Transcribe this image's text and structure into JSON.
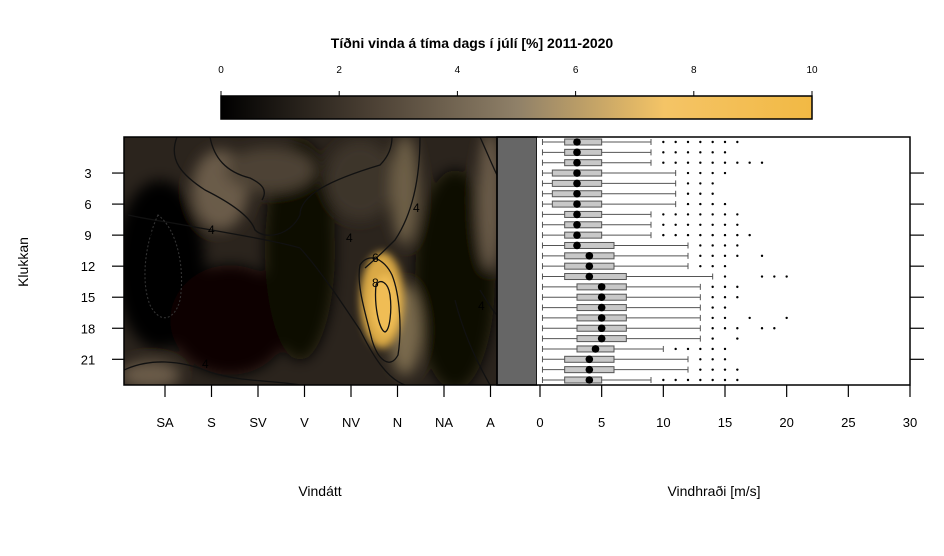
{
  "chart_data": {
    "type": "heatmap",
    "title": "Tíðni vinda á tíma dags í júlí [%] 2011-2020",
    "colorbar": {
      "ticks": [
        "0",
        "2",
        "4",
        "6",
        "8",
        "10"
      ],
      "range": [
        0,
        10
      ],
      "colors": [
        "#000000",
        "#4a3f33",
        "#8f8068",
        "#f4c466",
        "#f2b944"
      ]
    },
    "ylabel": "Klukkan",
    "hour_ticks": [
      "3",
      "6",
      "9",
      "12",
      "15",
      "18",
      "21"
    ],
    "hour_range": [
      0,
      23
    ],
    "direction_axis": {
      "label": "Vindátt",
      "ticks": [
        "SA",
        "S",
        "SV",
        "V",
        "NV",
        "N",
        "NA",
        "A"
      ]
    },
    "contour_labels": [
      "0.5",
      "4",
      "4",
      "4",
      "4",
      "4",
      "6",
      "8"
    ],
    "calm_panel_color": "#666666",
    "speed_axis": {
      "label": "Vindhraði [m/s]",
      "ticks": [
        "0",
        "5",
        "10",
        "15",
        "20",
        "25",
        "30"
      ],
      "range": [
        0,
        30
      ]
    },
    "boxplots": [
      {
        "hour": 0,
        "min": 0.2,
        "q1": 2,
        "median": 3,
        "q3": 5,
        "max": 9,
        "outliers": [
          10,
          11,
          12,
          13,
          14,
          15,
          16
        ]
      },
      {
        "hour": 1,
        "min": 0.2,
        "q1": 2,
        "median": 3,
        "q3": 5,
        "max": 9,
        "outliers": [
          10,
          11,
          12,
          13,
          14,
          15
        ]
      },
      {
        "hour": 2,
        "min": 0.2,
        "q1": 2,
        "median": 3,
        "q3": 5,
        "max": 9,
        "outliers": [
          10,
          11,
          12,
          13,
          14,
          15,
          16,
          17,
          18
        ]
      },
      {
        "hour": 3,
        "min": 0.2,
        "q1": 1,
        "median": 3,
        "q3": 5,
        "max": 11,
        "outliers": [
          12,
          13,
          14,
          15
        ]
      },
      {
        "hour": 4,
        "min": 0.2,
        "q1": 1,
        "median": 3,
        "q3": 5,
        "max": 11,
        "outliers": [
          12,
          13,
          14
        ]
      },
      {
        "hour": 5,
        "min": 0.2,
        "q1": 1,
        "median": 3,
        "q3": 5,
        "max": 11,
        "outliers": [
          12,
          13,
          14
        ]
      },
      {
        "hour": 6,
        "min": 0.2,
        "q1": 1,
        "median": 3,
        "q3": 5,
        "max": 11,
        "outliers": [
          12,
          13,
          14,
          15
        ]
      },
      {
        "hour": 7,
        "min": 0.2,
        "q1": 2,
        "median": 3,
        "q3": 5,
        "max": 9,
        "outliers": [
          10,
          11,
          12,
          13,
          14,
          15,
          16
        ]
      },
      {
        "hour": 8,
        "min": 0.2,
        "q1": 2,
        "median": 3,
        "q3": 5,
        "max": 9,
        "outliers": [
          10,
          11,
          12,
          13,
          14,
          15,
          16
        ]
      },
      {
        "hour": 9,
        "min": 0.2,
        "q1": 2,
        "median": 3,
        "q3": 5,
        "max": 9,
        "outliers": [
          10,
          11,
          12,
          13,
          14,
          15,
          16,
          17
        ]
      },
      {
        "hour": 10,
        "min": 0.2,
        "q1": 2,
        "median": 3,
        "q3": 6,
        "max": 12,
        "outliers": [
          13,
          14,
          15,
          16
        ]
      },
      {
        "hour": 11,
        "min": 0.2,
        "q1": 2,
        "median": 4,
        "q3": 6,
        "max": 12,
        "outliers": [
          13,
          14,
          15,
          16,
          18
        ]
      },
      {
        "hour": 12,
        "min": 0.2,
        "q1": 2,
        "median": 4,
        "q3": 6,
        "max": 12,
        "outliers": [
          13,
          14,
          15
        ]
      },
      {
        "hour": 13,
        "min": 0.2,
        "q1": 2,
        "median": 4,
        "q3": 7,
        "max": 14,
        "outliers": [
          15,
          18,
          19,
          20
        ]
      },
      {
        "hour": 14,
        "min": 0.2,
        "q1": 3,
        "median": 5,
        "q3": 7,
        "max": 13,
        "outliers": [
          14,
          15,
          16
        ]
      },
      {
        "hour": 15,
        "min": 0.2,
        "q1": 3,
        "median": 5,
        "q3": 7,
        "max": 13,
        "outliers": [
          14,
          15,
          16
        ]
      },
      {
        "hour": 16,
        "min": 0.2,
        "q1": 3,
        "median": 5,
        "q3": 7,
        "max": 13,
        "outliers": [
          14,
          15
        ]
      },
      {
        "hour": 17,
        "min": 0.2,
        "q1": 3,
        "median": 5,
        "q3": 7,
        "max": 13,
        "outliers": [
          14,
          15,
          17,
          20
        ]
      },
      {
        "hour": 18,
        "min": 0.2,
        "q1": 3,
        "median": 5,
        "q3": 7,
        "max": 13,
        "outliers": [
          14,
          15,
          16,
          18,
          19
        ]
      },
      {
        "hour": 19,
        "min": 0.2,
        "q1": 3,
        "median": 5,
        "q3": 7,
        "max": 13,
        "outliers": [
          14,
          16
        ]
      },
      {
        "hour": 20,
        "min": 0.2,
        "q1": 3,
        "median": 4.5,
        "q3": 6,
        "max": 10,
        "outliers": [
          11,
          12,
          13,
          14,
          15
        ]
      },
      {
        "hour": 21,
        "min": 0.2,
        "q1": 2,
        "median": 4,
        "q3": 6,
        "max": 12,
        "outliers": [
          13,
          14,
          15
        ]
      },
      {
        "hour": 22,
        "min": 0.2,
        "q1": 2,
        "median": 4,
        "q3": 6,
        "max": 12,
        "outliers": [
          13,
          14,
          15,
          16
        ]
      },
      {
        "hour": 23,
        "min": 0.2,
        "q1": 2,
        "median": 4,
        "q3": 5,
        "max": 9,
        "outliers": [
          10,
          11,
          12,
          13,
          14,
          15,
          16
        ]
      }
    ]
  }
}
